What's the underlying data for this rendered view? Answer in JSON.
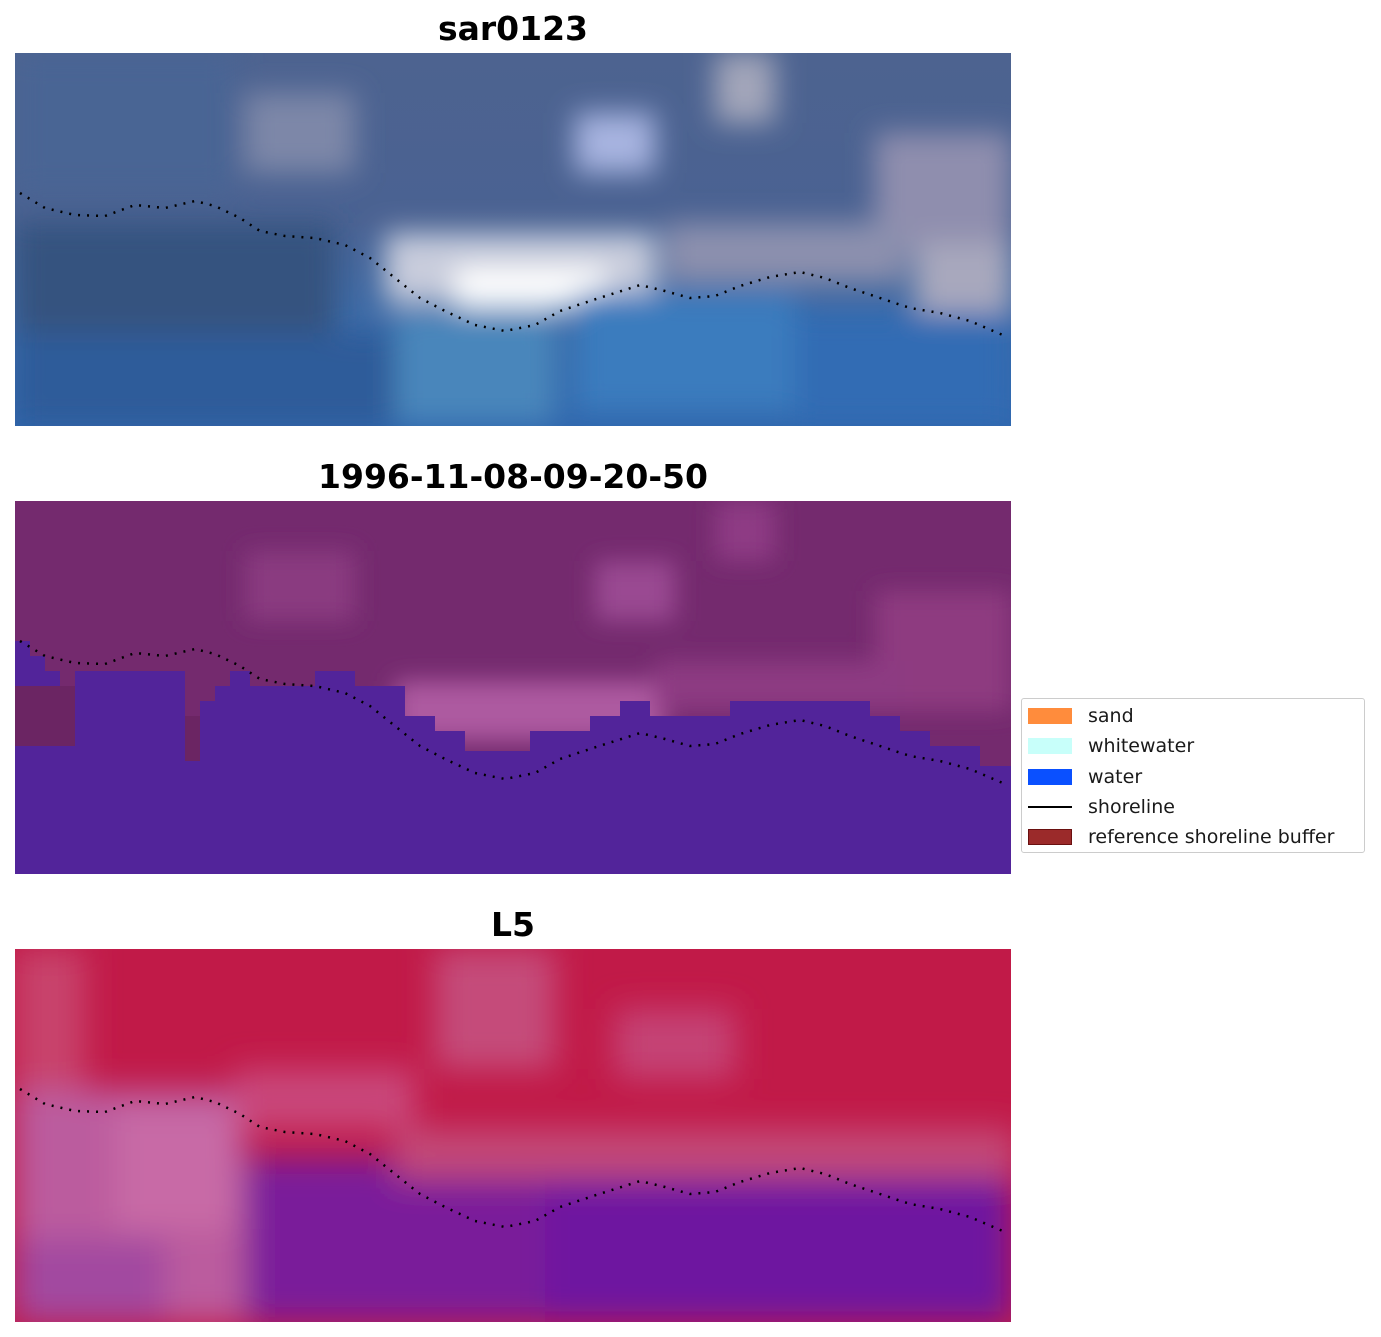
{
  "panels": [
    {
      "title": "sar0123"
    },
    {
      "title": "1996-11-08-09-20-50"
    },
    {
      "title": "L5"
    }
  ],
  "legend": {
    "items": [
      {
        "label": "sand",
        "kind": "patch",
        "color": "#ff8c3c"
      },
      {
        "label": "whitewater",
        "kind": "patch",
        "color": "#c8fffa"
      },
      {
        "label": "water",
        "kind": "patch",
        "color": "#0a50ff"
      },
      {
        "label": "shoreline",
        "kind": "line",
        "color": "#000000"
      },
      {
        "label": "reference shoreline buffer",
        "kind": "patch",
        "color": "#9b2a2a"
      }
    ]
  }
}
